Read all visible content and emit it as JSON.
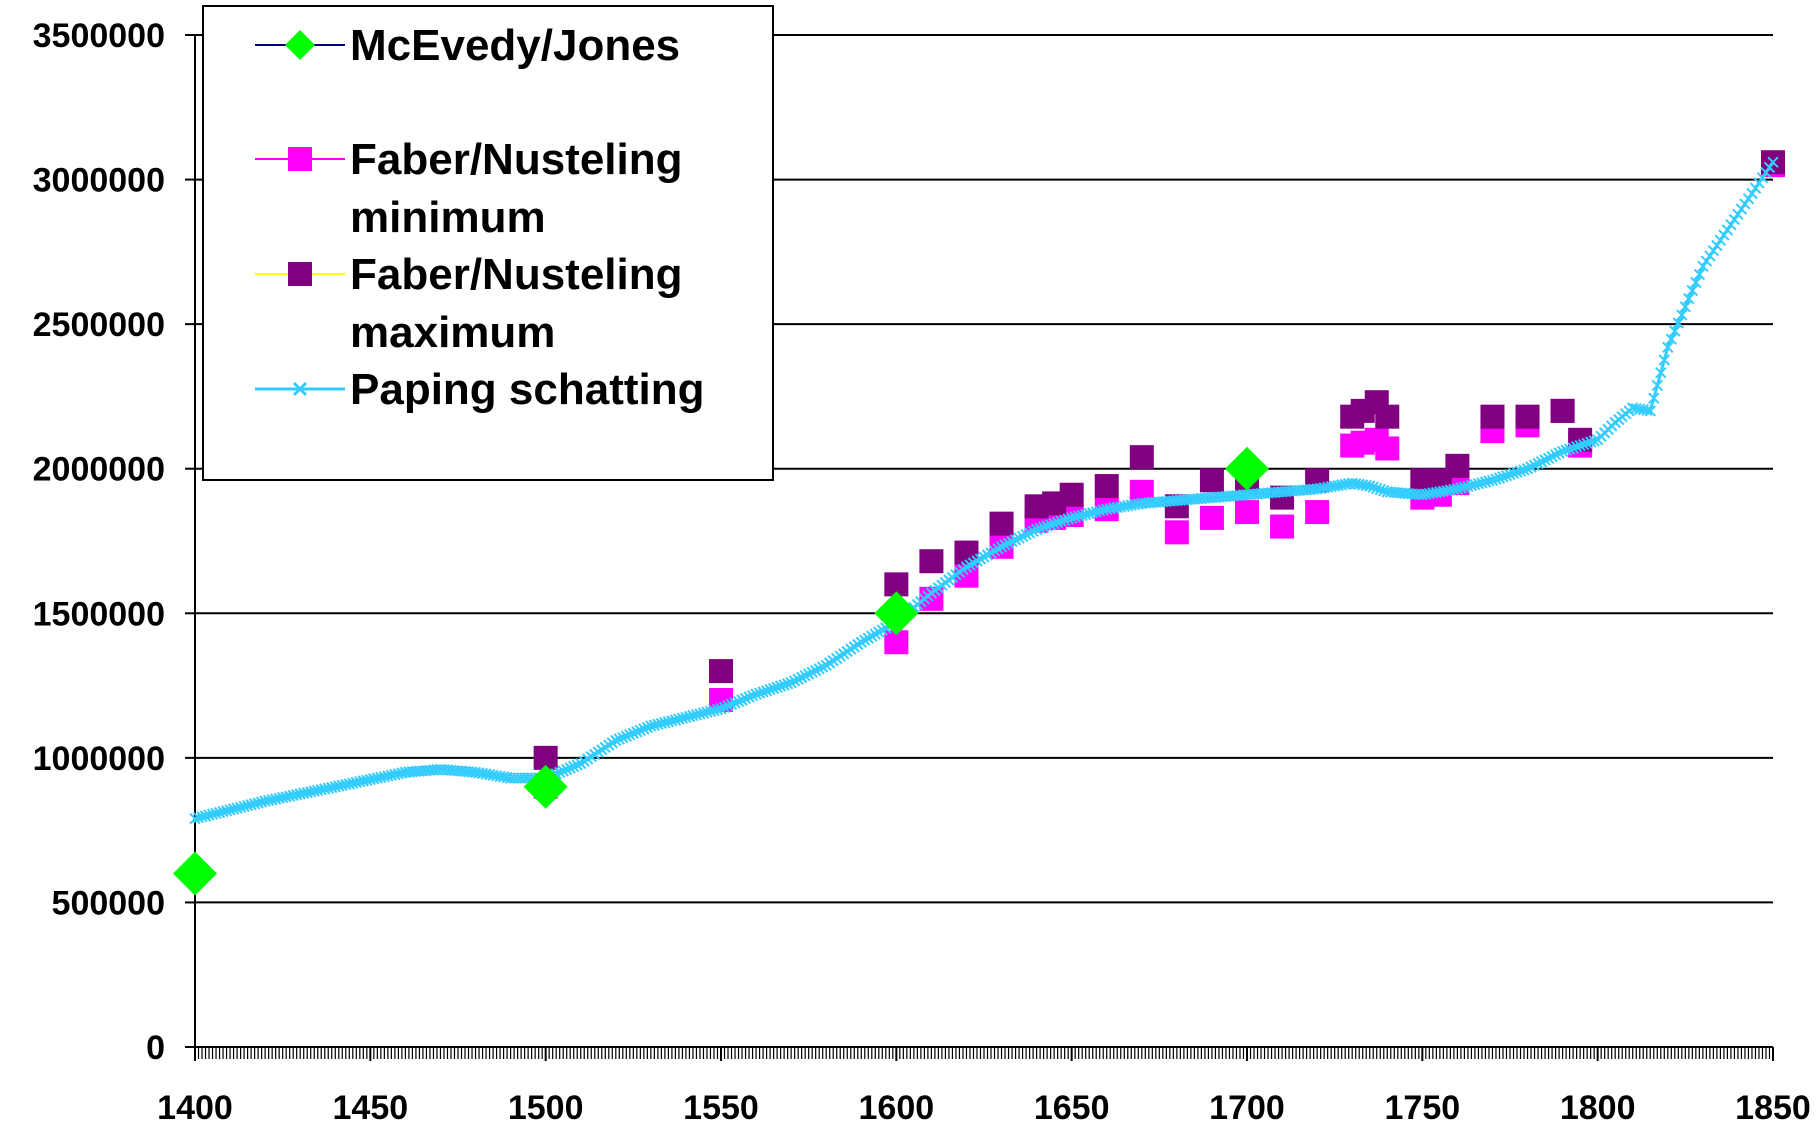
{
  "chart_data": {
    "type": "scatter",
    "title": "",
    "xlabel": "",
    "ylabel": "",
    "xlim": [
      1400,
      1850
    ],
    "ylim": [
      0,
      3500000
    ],
    "x_ticks": [
      "1400",
      "1450",
      "1500",
      "1550",
      "1600",
      "1650",
      "1700",
      "1750",
      "1800",
      "1850"
    ],
    "y_ticks": [
      "0",
      "500000",
      "1000000",
      "1500000",
      "2000000",
      "2500000",
      "3000000",
      "3500000"
    ],
    "grid": "horizontal",
    "legend_position": "top-left",
    "colors": {
      "mcevedy": "#00ff00",
      "faber_min": "#ff00ff",
      "faber_max": "#800080",
      "paping": "#33ccff",
      "axis": "#000000",
      "grid": "#000000"
    },
    "series": [
      {
        "name": "McEvedy/Jones",
        "marker": "diamond",
        "legend_line_color": "#000080",
        "x": [
          1400,
          1500,
          1600,
          1700
        ],
        "y": [
          600000,
          900000,
          1500000,
          2000000
        ]
      },
      {
        "name": "Faber/Nusteling minimum",
        "legend_lines": [
          "Faber/Nusteling",
          "minimum"
        ],
        "marker": "square",
        "legend_line_color": "#ff00ff",
        "x": [
          1500,
          1550,
          1600,
          1610,
          1620,
          1630,
          1640,
          1645,
          1650,
          1660,
          1670,
          1680,
          1690,
          1700,
          1710,
          1720,
          1730,
          1733,
          1737,
          1740,
          1750,
          1755,
          1760,
          1770,
          1780,
          1790,
          1795,
          1850
        ],
        "y": [
          900000,
          1200000,
          1400000,
          1550000,
          1630000,
          1730000,
          1820000,
          1830000,
          1840000,
          1860000,
          1920000,
          1780000,
          1830000,
          1850000,
          1800000,
          1850000,
          2080000,
          2090000,
          2100000,
          2070000,
          1900000,
          1910000,
          1950000,
          2130000,
          2150000,
          2200000,
          2080000,
          3050000
        ]
      },
      {
        "name": "Faber/Nusteling maximum",
        "legend_lines": [
          "Faber/Nusteling",
          "maximum"
        ],
        "marker": "square",
        "legend_line_color": "#ffff00",
        "x": [
          1500,
          1550,
          1600,
          1610,
          1620,
          1630,
          1640,
          1645,
          1650,
          1660,
          1670,
          1680,
          1690,
          1700,
          1710,
          1720,
          1730,
          1733,
          1737,
          1740,
          1750,
          1755,
          1760,
          1770,
          1780,
          1790,
          1795,
          1850
        ],
        "y": [
          1000000,
          1300000,
          1600000,
          1680000,
          1710000,
          1810000,
          1870000,
          1880000,
          1910000,
          1940000,
          2040000,
          1870000,
          1960000,
          1960000,
          1900000,
          1960000,
          2180000,
          2200000,
          2230000,
          2180000,
          1960000,
          1960000,
          2010000,
          2180000,
          2180000,
          2200000,
          2100000,
          3060000
        ]
      },
      {
        "name": "Paping schatting",
        "marker": "x",
        "x": [
          1400,
          1420,
          1440,
          1460,
          1470,
          1480,
          1490,
          1500,
          1510,
          1520,
          1530,
          1540,
          1550,
          1560,
          1570,
          1580,
          1590,
          1600,
          1610,
          1620,
          1630,
          1640,
          1650,
          1660,
          1670,
          1680,
          1690,
          1700,
          1710,
          1720,
          1730,
          1735,
          1740,
          1750,
          1760,
          1770,
          1780,
          1790,
          1800,
          1805,
          1810,
          1815,
          1820,
          1830,
          1840,
          1850
        ],
        "y": [
          790000,
          850000,
          900000,
          950000,
          960000,
          950000,
          930000,
          930000,
          980000,
          1060000,
          1110000,
          1140000,
          1170000,
          1220000,
          1260000,
          1320000,
          1400000,
          1470000,
          1570000,
          1660000,
          1730000,
          1790000,
          1830000,
          1860000,
          1880000,
          1890000,
          1900000,
          1910000,
          1920000,
          1930000,
          1950000,
          1940000,
          1920000,
          1910000,
          1930000,
          1960000,
          2000000,
          2060000,
          2100000,
          2160000,
          2210000,
          2200000,
          2420000,
          2700000,
          2880000,
          3060000
        ]
      }
    ]
  }
}
